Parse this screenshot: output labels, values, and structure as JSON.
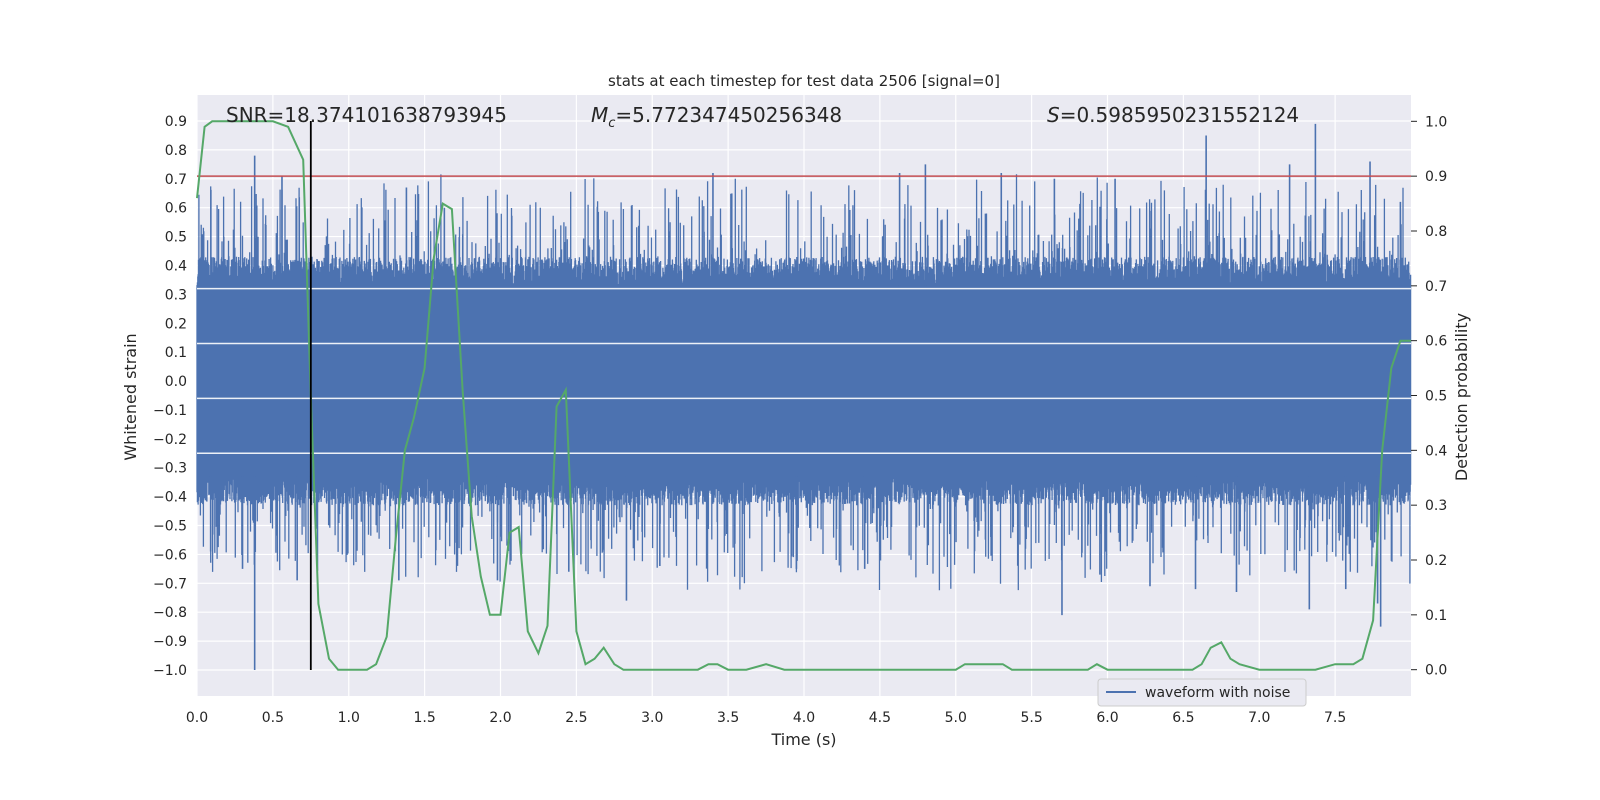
{
  "chart_data": {
    "type": "line",
    "title": "stats at each timestep for test data 2506 [signal=0]",
    "xlabel": "Time (s)",
    "ylabel": "Whitened strain",
    "y2label": "Detection probability",
    "xlim": [
      0.0,
      8.0
    ],
    "ylim": [
      -1.09,
      0.99
    ],
    "y2lim": [
      -0.048,
      1.048
    ],
    "xticks": [
      "0.0",
      "0.5",
      "1.0",
      "1.5",
      "2.0",
      "2.5",
      "3.0",
      "3.5",
      "4.0",
      "4.5",
      "5.0",
      "5.5",
      "6.0",
      "6.5",
      "7.0",
      "7.5"
    ],
    "yticks": [
      "0.9",
      "0.8",
      "0.7",
      "0.6",
      "0.5",
      "0.4",
      "0.3",
      "0.2",
      "0.1",
      "0.0",
      "−0.1",
      "−0.2",
      "−0.3",
      "−0.4",
      "−0.5",
      "−0.6",
      "−0.7",
      "−0.8",
      "−0.9",
      "−1.0"
    ],
    "y2ticks": [
      "1.0",
      "0.9",
      "0.8",
      "0.7",
      "0.6",
      "0.5",
      "0.4",
      "0.3",
      "0.2",
      "0.1",
      "0.0"
    ],
    "annotations": {
      "snr": "SNR=18.374101638793945",
      "mc_symbol": "M",
      "mc_sub": "c",
      "mc_value": "=5.772347450256348",
      "s_symbol": "S",
      "s_value": "=0.5985950231552124"
    },
    "legend": {
      "label": "waveform with noise",
      "location": "lower-right"
    },
    "threshold": {
      "value": 0.9,
      "axis": "right",
      "color": "#c44e52"
    },
    "marker_time": 0.75,
    "marker_range": [
      -1.0,
      0.9
    ],
    "waveform": {
      "name": "waveform with noise",
      "color": "#4c72b0",
      "t_start": 0.0,
      "t_end": 8.0,
      "envelope_upper": 0.33,
      "envelope_lower": -0.33,
      "spikes": [
        {
          "t": 0.38,
          "v": 0.78
        },
        {
          "t": 0.38,
          "v": -1.0
        },
        {
          "t": 0.56,
          "v": 0.71
        },
        {
          "t": 0.09,
          "v": -0.59
        },
        {
          "t": 0.3,
          "v": -0.65
        },
        {
          "t": 0.66,
          "v": -0.69
        },
        {
          "t": 1.38,
          "v": 0.67
        },
        {
          "t": 1.33,
          "v": -0.69
        },
        {
          "t": 1.63,
          "v": 0.6
        },
        {
          "t": 2.83,
          "v": -0.76
        },
        {
          "t": 3.4,
          "v": 0.72
        },
        {
          "t": 3.05,
          "v": -0.64
        },
        {
          "t": 3.95,
          "v": -0.65
        },
        {
          "t": 4.63,
          "v": 0.72
        },
        {
          "t": 4.8,
          "v": 0.75
        },
        {
          "t": 5.3,
          "v": 0.72
        },
        {
          "t": 5.65,
          "v": 0.7
        },
        {
          "t": 5.7,
          "v": -0.81
        },
        {
          "t": 5.95,
          "v": -0.67
        },
        {
          "t": 6.28,
          "v": -0.71
        },
        {
          "t": 6.65,
          "v": 0.85
        },
        {
          "t": 6.58,
          "v": -0.72
        },
        {
          "t": 6.85,
          "v": -0.73
        },
        {
          "t": 7.2,
          "v": 0.75
        },
        {
          "t": 7.37,
          "v": 0.89
        },
        {
          "t": 7.33,
          "v": -0.79
        },
        {
          "t": 7.57,
          "v": -0.72
        },
        {
          "t": 7.73,
          "v": 0.76
        },
        {
          "t": 7.78,
          "v": -0.77
        },
        {
          "t": 7.8,
          "v": -0.85
        },
        {
          "t": 7.93,
          "v": 0.62
        },
        {
          "t": 1.98,
          "v": -0.69
        },
        {
          "t": 4.4,
          "v": -0.65
        },
        {
          "t": 2.45,
          "v": -0.66
        },
        {
          "t": 6.05,
          "v": 0.7
        }
      ]
    },
    "probability": {
      "name": "detection probability",
      "color": "#55a868",
      "t": [
        0.0,
        0.05,
        0.1,
        0.2,
        0.3,
        0.4,
        0.5,
        0.6,
        0.7,
        0.75,
        0.8,
        0.87,
        0.93,
        1.0,
        1.06,
        1.12,
        1.18,
        1.25,
        1.31,
        1.37,
        1.43,
        1.5,
        1.56,
        1.62,
        1.68,
        1.75,
        1.81,
        1.87,
        1.93,
        2.0,
        2.06,
        2.12,
        2.18,
        2.25,
        2.31,
        2.37,
        2.43,
        2.5,
        2.56,
        2.62,
        2.68,
        2.75,
        2.81,
        2.9,
        3.0,
        3.1,
        3.2,
        3.3,
        3.37,
        3.43,
        3.5,
        3.56,
        3.62,
        3.75,
        3.87,
        4.0,
        4.5,
        5.0,
        5.06,
        5.12,
        5.18,
        5.25,
        5.31,
        5.37,
        5.5,
        5.87,
        5.93,
        6.0,
        6.5,
        6.56,
        6.62,
        6.68,
        6.75,
        6.81,
        6.87,
        7.0,
        7.25,
        7.37,
        7.5,
        7.56,
        7.62,
        7.68,
        7.75,
        7.81,
        7.87,
        7.93,
        8.0
      ],
      "p": [
        0.86,
        0.99,
        1.0,
        1.0,
        1.0,
        1.0,
        1.0,
        0.99,
        0.93,
        0.5,
        0.12,
        0.02,
        0.0,
        0.0,
        0.0,
        0.0,
        0.01,
        0.06,
        0.24,
        0.4,
        0.46,
        0.55,
        0.75,
        0.85,
        0.84,
        0.51,
        0.28,
        0.17,
        0.1,
        0.1,
        0.25,
        0.26,
        0.07,
        0.03,
        0.08,
        0.48,
        0.51,
        0.07,
        0.01,
        0.02,
        0.04,
        0.01,
        0.0,
        0.0,
        0.0,
        0.0,
        0.0,
        0.0,
        0.01,
        0.01,
        0.0,
        0.0,
        0.0,
        0.01,
        0.0,
        0.0,
        0.0,
        0.0,
        0.01,
        0.01,
        0.01,
        0.01,
        0.01,
        0.0,
        0.0,
        0.0,
        0.01,
        0.0,
        0.0,
        0.0,
        0.01,
        0.04,
        0.05,
        0.02,
        0.01,
        0.0,
        0.0,
        0.0,
        0.01,
        0.01,
        0.01,
        0.02,
        0.09,
        0.4,
        0.55,
        0.6,
        0.6
      ]
    }
  }
}
